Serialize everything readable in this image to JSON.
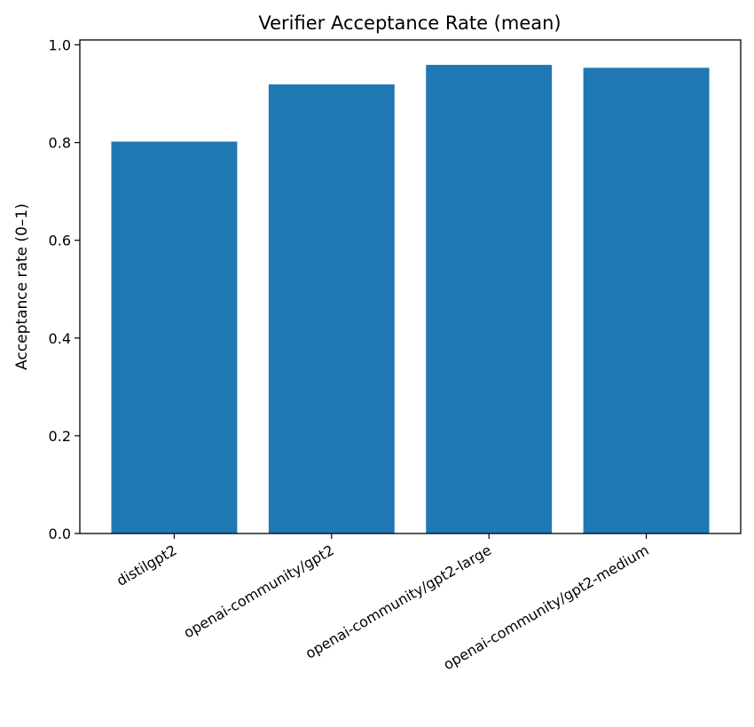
{
  "chart_data": {
    "type": "bar",
    "title": "Verifier Acceptance Rate (mean)",
    "xlabel": "",
    "ylabel": "Acceptance rate (0–1)",
    "categories": [
      "distilgpt2",
      "openai-community/gpt2",
      "openai-community/gpt2-large",
      "openai-community/gpt2-medium"
    ],
    "values": [
      0.802,
      0.919,
      0.959,
      0.953
    ],
    "ylim": [
      0,
      1.01
    ],
    "yticks": [
      "0.0",
      "0.2",
      "0.4",
      "0.6",
      "0.8",
      "1.0"
    ],
    "bar_color": "#1f77b4",
    "grid": false,
    "legend": "none"
  }
}
